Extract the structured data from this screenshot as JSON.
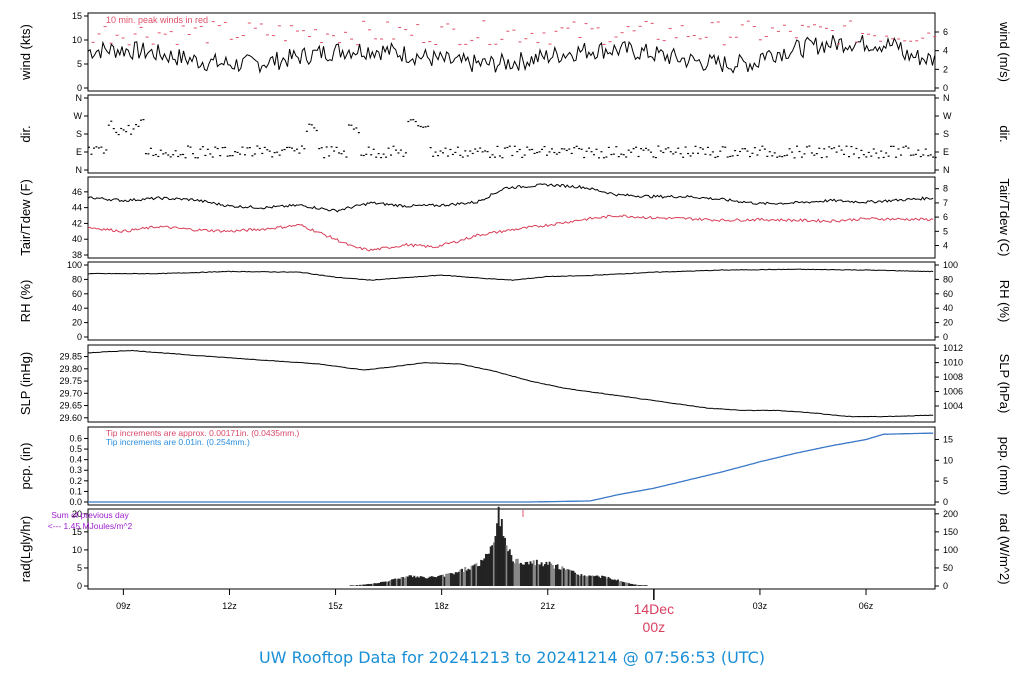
{
  "title": "UW Rooftop Data for 20241213  to  20241214 @ 07:56:53  (UTC)",
  "colors": {
    "series": "#000000",
    "peak": "#e0506a",
    "dew": "#d8405a",
    "pcp_blue": "#3a78c8",
    "pink_note": "#d84868",
    "blue_note": "#2a8ee0",
    "purple_note": "#a020d0",
    "date_label": "#d84060",
    "title": "#1a8fd6"
  },
  "time_axis": {
    "tick_labels": [
      "09z",
      "12z",
      "15z",
      "18z",
      "21z",
      "03z",
      "06z"
    ],
    "date_label_day": "14Dec",
    "date_label_hour": "00z"
  },
  "chart_data": [
    {
      "type": "line",
      "name": "wind",
      "ylabel_left": "wind (kts)",
      "ylabel_right": "wind (m/s)",
      "left_ticks": [
        "0",
        "5",
        "10",
        "15"
      ],
      "right_ticks": [
        "0",
        "2",
        "4",
        "6"
      ],
      "ylim": [
        0,
        15
      ],
      "annotation": "10 min. peak winds in red",
      "series_desc": "sustained wind ~4-9 kts, peaks ~8-15 kts"
    },
    {
      "type": "scatter",
      "name": "dir",
      "ylabel_left": "dir.",
      "ylabel_right": "dir.",
      "left_ticks": [
        "N",
        "E",
        "S",
        "W",
        "N"
      ],
      "right_ticks": [
        "N",
        "E",
        "S",
        "W",
        "N"
      ]
    },
    {
      "type": "line",
      "name": "temp",
      "ylabel_left": "Tair/Tdew (F)",
      "ylabel_right": "Tair/Tdew (C)",
      "left_ticks": [
        "38",
        "40",
        "42",
        "44",
        "46"
      ],
      "right_ticks": [
        "4",
        "5",
        "6",
        "7",
        "8"
      ],
      "ylim": [
        38,
        48
      ],
      "series": [
        {
          "name": "Tair",
          "x": [
            8,
            9,
            10,
            11,
            12,
            13,
            14,
            15,
            16,
            17,
            18,
            19,
            19.8,
            21,
            22,
            23,
            24,
            25,
            26,
            27,
            28,
            29,
            30,
            31.8
          ],
          "values": [
            45.3,
            44.9,
            45.2,
            45.0,
            44.2,
            44.0,
            44.3,
            43.6,
            44.6,
            44.2,
            44.3,
            44.7,
            46.5,
            46.9,
            46.6,
            45.6,
            45.4,
            45.4,
            45.0,
            44.5,
            44.6,
            44.9,
            44.7,
            45.2
          ]
        },
        {
          "name": "Tdew",
          "x": [
            8,
            9,
            10,
            11,
            12,
            13,
            14,
            15,
            15.5,
            16,
            17,
            17.8,
            18.5,
            19,
            20,
            21,
            22,
            23,
            24,
            25,
            26,
            27,
            28,
            29,
            30,
            31.8
          ],
          "values": [
            41.5,
            41.0,
            41.6,
            41.2,
            41.0,
            41.3,
            41.8,
            40.0,
            39.0,
            38.6,
            39.3,
            39.0,
            39.8,
            40.5,
            41.2,
            41.8,
            42.5,
            43.0,
            42.7,
            42.6,
            42.4,
            42.5,
            42.4,
            42.3,
            42.6,
            42.5
          ]
        }
      ]
    },
    {
      "type": "line",
      "name": "rh",
      "ylabel_left": "RH (%)",
      "ylabel_right": "RH (%)",
      "left_ticks": [
        "0",
        "20",
        "40",
        "60",
        "80",
        "100"
      ],
      "right_ticks": [
        "0",
        "20",
        "40",
        "60",
        "80",
        "100"
      ],
      "ylim": [
        0,
        100
      ],
      "x": [
        8,
        10,
        12,
        14,
        15,
        16,
        18,
        19.3,
        20,
        21,
        22,
        24,
        26,
        28,
        30,
        31.8
      ],
      "values": [
        88,
        88,
        91,
        90,
        83,
        79,
        86,
        81,
        79,
        84,
        85,
        90,
        93,
        94,
        93,
        91
      ]
    },
    {
      "type": "line",
      "name": "slp",
      "ylabel_left": "SLP (inHg)",
      "ylabel_right": "SLP (hPa)",
      "left_ticks": [
        "29.60",
        "29.65",
        "29.70",
        "29.75",
        "29.80",
        "29.85"
      ],
      "right_ticks": [
        "1004",
        "1006",
        "1008",
        "1010",
        "1012"
      ],
      "ylim": [
        29.595,
        29.885
      ],
      "x": [
        8,
        9.2,
        11,
        13,
        14.5,
        15.8,
        16.7,
        17.5,
        18.5,
        19.5,
        20.5,
        21.5,
        22.5,
        23.5,
        24.5,
        25.5,
        26.5,
        27.5,
        28.5,
        29.5,
        30.5,
        31.8
      ],
      "values": [
        29.865,
        29.875,
        29.855,
        29.835,
        29.82,
        29.795,
        29.81,
        29.825,
        29.82,
        29.79,
        29.75,
        29.72,
        29.7,
        29.68,
        29.66,
        29.64,
        29.63,
        29.63,
        29.62,
        29.605,
        29.605,
        29.61
      ]
    },
    {
      "type": "line",
      "name": "pcp",
      "ylabel_left": "pcp. (in)",
      "ylabel_right": "pcp. (mm)",
      "left_ticks": [
        "0.0",
        "0.1",
        "0.2",
        "0.3",
        "0.4",
        "0.5",
        "0.6"
      ],
      "right_ticks": [
        "0",
        "5",
        "10",
        "15"
      ],
      "ylim": [
        0,
        0.7
      ],
      "note_pink": "Tip increments are approx. 0.00171in. (0.0435mm.)",
      "note_blue": "Tip increments are 0.01in. (0.254mm.)",
      "x": [
        8,
        20.5,
        22.2,
        23,
        24,
        25,
        26,
        27,
        28,
        29,
        30,
        30.5,
        31.8
      ],
      "values": [
        0,
        0,
        0.01,
        0.07,
        0.13,
        0.21,
        0.29,
        0.38,
        0.46,
        0.53,
        0.59,
        0.64,
        0.65
      ]
    },
    {
      "type": "bar",
      "name": "rad",
      "ylabel_left": "rad(Lgly/hr)",
      "ylabel_right": "rad (W/m^2)",
      "left_ticks": [
        "0",
        "5",
        "10",
        "15",
        "20"
      ],
      "right_ticks": [
        "0",
        "50",
        "100",
        "150",
        "200"
      ],
      "ylim": [
        0,
        20
      ],
      "note_line1": "Sum of previous day",
      "note_line2": "<--- 1.45 MJoules/m^2",
      "x": [
        15.5,
        16,
        16.5,
        17,
        17.5,
        18,
        18.5,
        19,
        19.3,
        19.5,
        19.6,
        19.8,
        20,
        20.5,
        21,
        21.5,
        22,
        22.5,
        23,
        23.3,
        23.6
      ],
      "values": [
        0.2,
        0.6,
        1.5,
        2.8,
        2.3,
        2.8,
        4.2,
        6.0,
        8.5,
        15,
        20,
        12,
        7,
        6.5,
        6.0,
        4.5,
        2.8,
        2.6,
        1.5,
        0.6,
        0.2
      ]
    }
  ]
}
